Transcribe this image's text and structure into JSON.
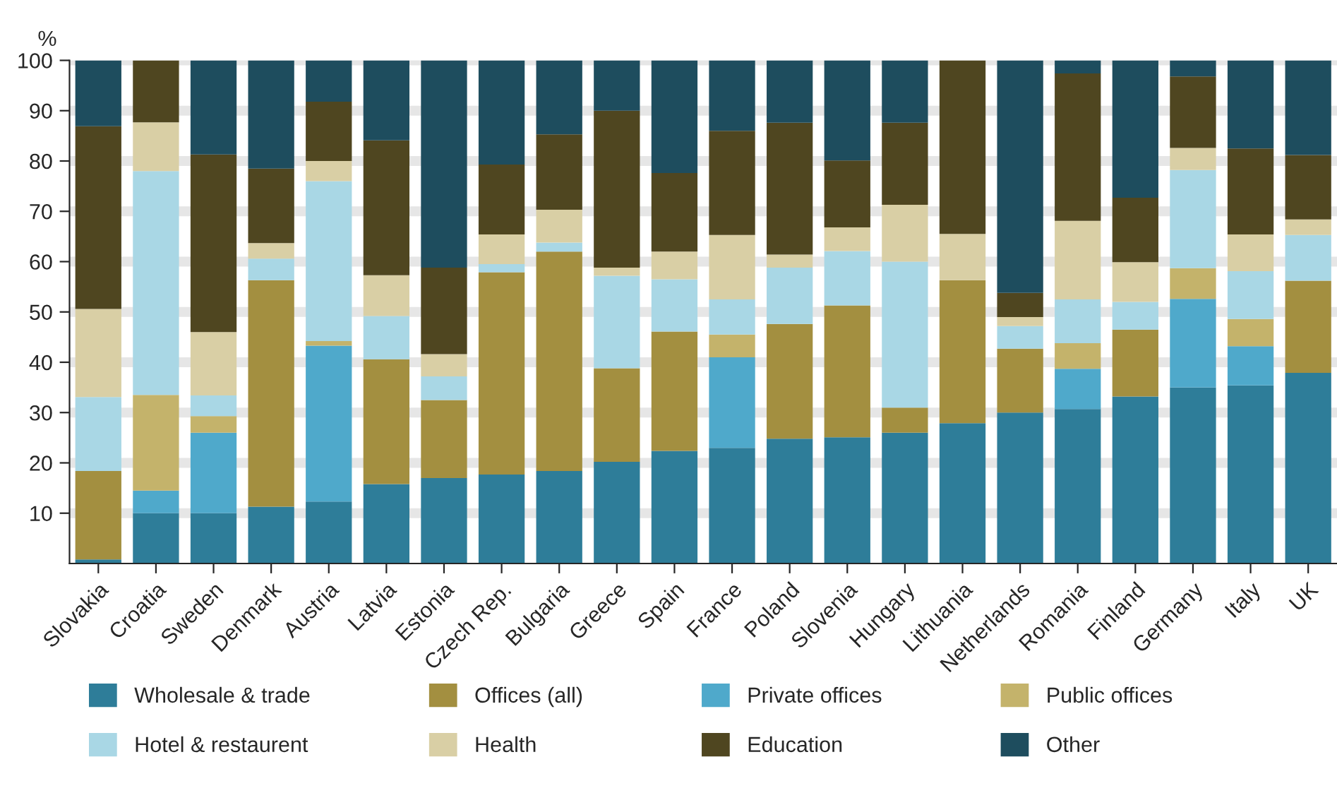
{
  "chart_data": {
    "type": "bar",
    "stacked": true,
    "ylabel": "%",
    "categories": [
      "Slovakia",
      "Croatia",
      "Sweden",
      "Denmark",
      "Austria",
      "Latvia",
      "Estonia",
      "Czech Rep.",
      "Bulgaria",
      "Greece",
      "Spain",
      "France",
      "Poland",
      "Slovenia",
      "Hungary",
      "Lithuania",
      "Netherlands",
      "Romania",
      "Finland",
      "Germany",
      "Italy",
      "UK"
    ],
    "series": [
      {
        "name": "Wholesale & trade",
        "color": "#2e7d99",
        "values": [
          0.8,
          10,
          10,
          11.3,
          12.3,
          15.8,
          17,
          17.7,
          18.4,
          20.2,
          22.4,
          23,
          24.8,
          25.1,
          26,
          27.9,
          30,
          30.7,
          33.2,
          35,
          35.4,
          37.9
        ]
      },
      {
        "name": "Offices (all)",
        "color": "#a38f40",
        "values": [
          17.6,
          null,
          null,
          45,
          null,
          24.8,
          15.5,
          40.2,
          43.6,
          18.6,
          23.7,
          null,
          22.8,
          26.2,
          5,
          28.4,
          12.7,
          null,
          13.3,
          null,
          null,
          18.3
        ]
      },
      {
        "name": "Private offices",
        "color": "#4fa9cb",
        "values": [
          null,
          4.5,
          16,
          null,
          31,
          null,
          null,
          null,
          null,
          null,
          null,
          18,
          null,
          null,
          null,
          null,
          null,
          8,
          null,
          17.6,
          7.8,
          null
        ]
      },
      {
        "name": "Public offices",
        "color": "#c4b36b",
        "values": [
          null,
          19,
          3.3,
          null,
          0.9,
          null,
          null,
          null,
          null,
          null,
          null,
          4.5,
          null,
          null,
          null,
          null,
          null,
          5.1,
          null,
          6.1,
          5.4,
          null
        ]
      },
      {
        "name": "Hotel & restaurent",
        "color": "#a9d7e5",
        "values": [
          14.7,
          44.5,
          4.1,
          4.3,
          31.8,
          8.6,
          4.7,
          1.6,
          1.8,
          18.4,
          10.4,
          7,
          11.2,
          10.8,
          29,
          null,
          4.5,
          8.7,
          5.5,
          19.5,
          9.5,
          9.1
        ]
      },
      {
        "name": "Health",
        "color": "#d9cfa5",
        "values": [
          17.5,
          9.7,
          12.6,
          3.1,
          4,
          8.1,
          4.4,
          5.9,
          6.5,
          1.6,
          5.5,
          12.8,
          2.6,
          4.7,
          11.3,
          9.2,
          1.8,
          15.6,
          7.9,
          4.4,
          7.3,
          3.1
        ]
      },
      {
        "name": "Education",
        "color": "#4f4620",
        "values": [
          36.3,
          12.3,
          35.3,
          14.8,
          11.8,
          26.8,
          17.2,
          13.9,
          15,
          31.2,
          15.6,
          20.7,
          26.2,
          13.3,
          16.3,
          34.5,
          4.8,
          29.3,
          12.8,
          14.2,
          17.1,
          12.8
        ]
      },
      {
        "name": "Other",
        "color": "#1e4d5e",
        "values": [
          13.1,
          null,
          18.7,
          21.5,
          8.2,
          15.9,
          41.2,
          20.7,
          14.7,
          10,
          22.4,
          14,
          12.4,
          19.9,
          12.4,
          null,
          46.2,
          2.6,
          27.3,
          3.2,
          17.5,
          18.8
        ]
      }
    ],
    "ylim": [
      0,
      100
    ],
    "yticks": [
      10,
      20,
      30,
      40,
      50,
      60,
      70,
      80,
      90,
      100
    ],
    "grid": "y",
    "legend": "bottom"
  }
}
